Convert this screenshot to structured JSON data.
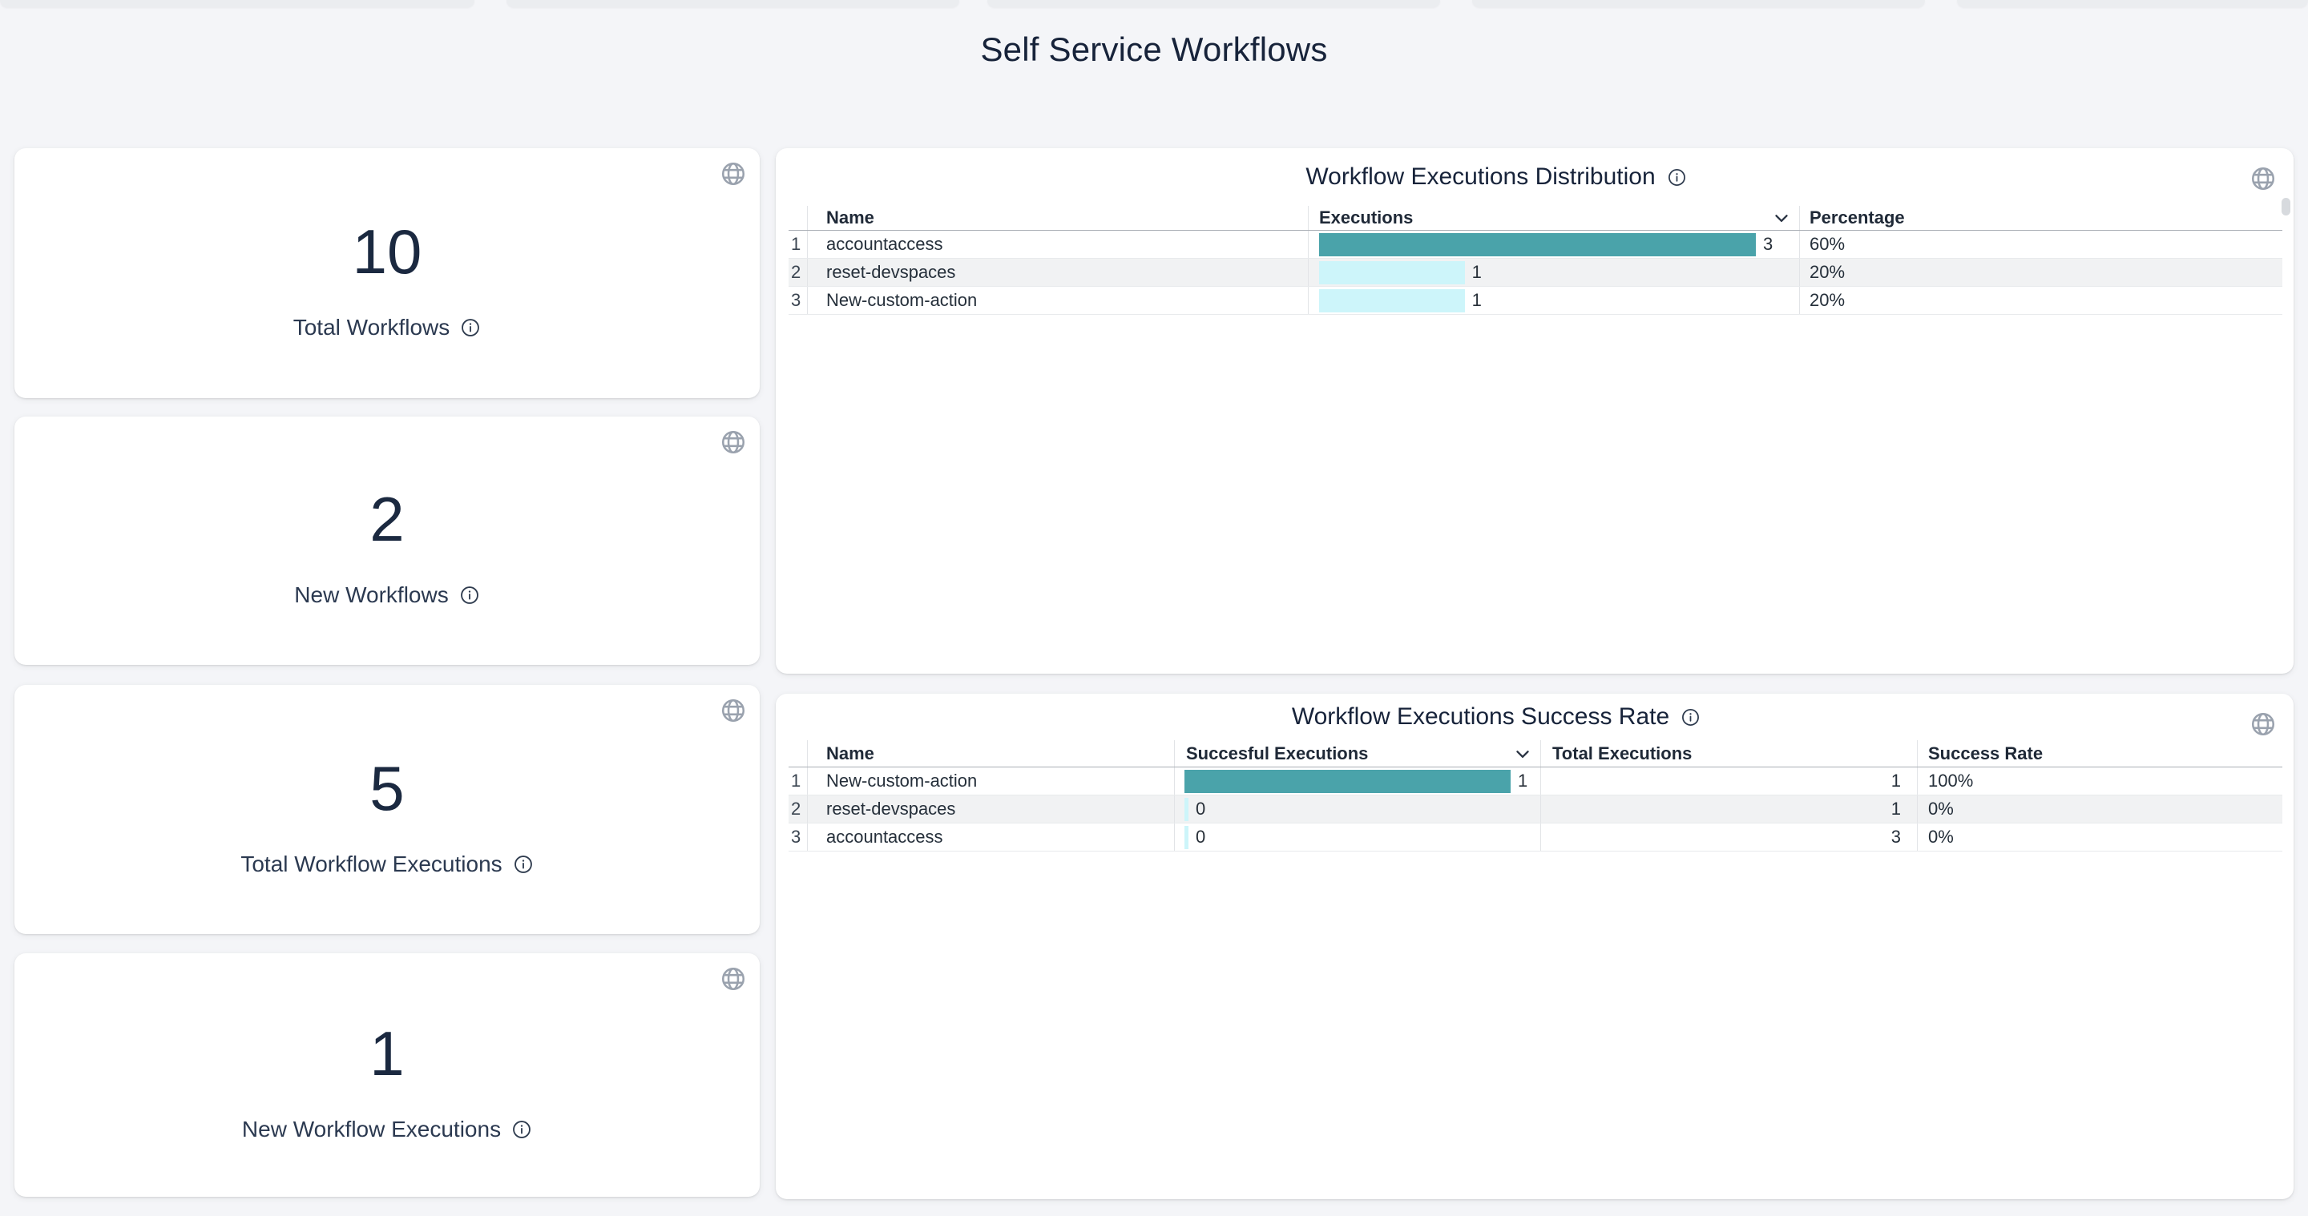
{
  "page_title": "Self Service Workflows",
  "stat_cards": [
    {
      "value": "10",
      "label": "Total Workflows"
    },
    {
      "value": "2",
      "label": "New Workflows"
    },
    {
      "value": "5",
      "label": "Total Workflow Executions"
    },
    {
      "value": "1",
      "label": "New Workflow Executions"
    }
  ],
  "distribution_panel": {
    "title": "Workflow Executions Distribution",
    "columns": {
      "name": "Name",
      "executions": "Executions",
      "percentage": "Percentage"
    },
    "sorted_by": "Executions",
    "max_executions": 3,
    "rows": [
      {
        "index": "1",
        "name": "accountaccess",
        "executions": 3,
        "percentage": "60%",
        "bar_color": "#4aa3aa"
      },
      {
        "index": "2",
        "name": "reset-devspaces",
        "executions": 1,
        "percentage": "20%",
        "bar_color": "#cdf5fa"
      },
      {
        "index": "3",
        "name": "New-custom-action",
        "executions": 1,
        "percentage": "20%",
        "bar_color": "#cdf5fa"
      }
    ]
  },
  "success_panel": {
    "title": "Workflow Executions Success Rate",
    "columns": {
      "name": "Name",
      "successful": "Succesful Executions",
      "total": "Total Executions",
      "rate": "Success Rate"
    },
    "sorted_by": "Succesful Executions",
    "max_successful": 1,
    "rows": [
      {
        "index": "1",
        "name": "New-custom-action",
        "successful": 1,
        "total": "1",
        "rate": "100%",
        "bar_color": "#4aa3aa"
      },
      {
        "index": "2",
        "name": "reset-devspaces",
        "successful": 0,
        "total": "1",
        "rate": "0%",
        "bar_color": "#cdf5fa"
      },
      {
        "index": "3",
        "name": "accountaccess",
        "successful": 0,
        "total": "3",
        "rate": "0%",
        "bar_color": "#cdf5fa"
      }
    ]
  },
  "colors": {
    "bar_primary": "#4aa3aa",
    "bar_secondary": "#cdf5fa",
    "accent_text": "#17233a"
  }
}
